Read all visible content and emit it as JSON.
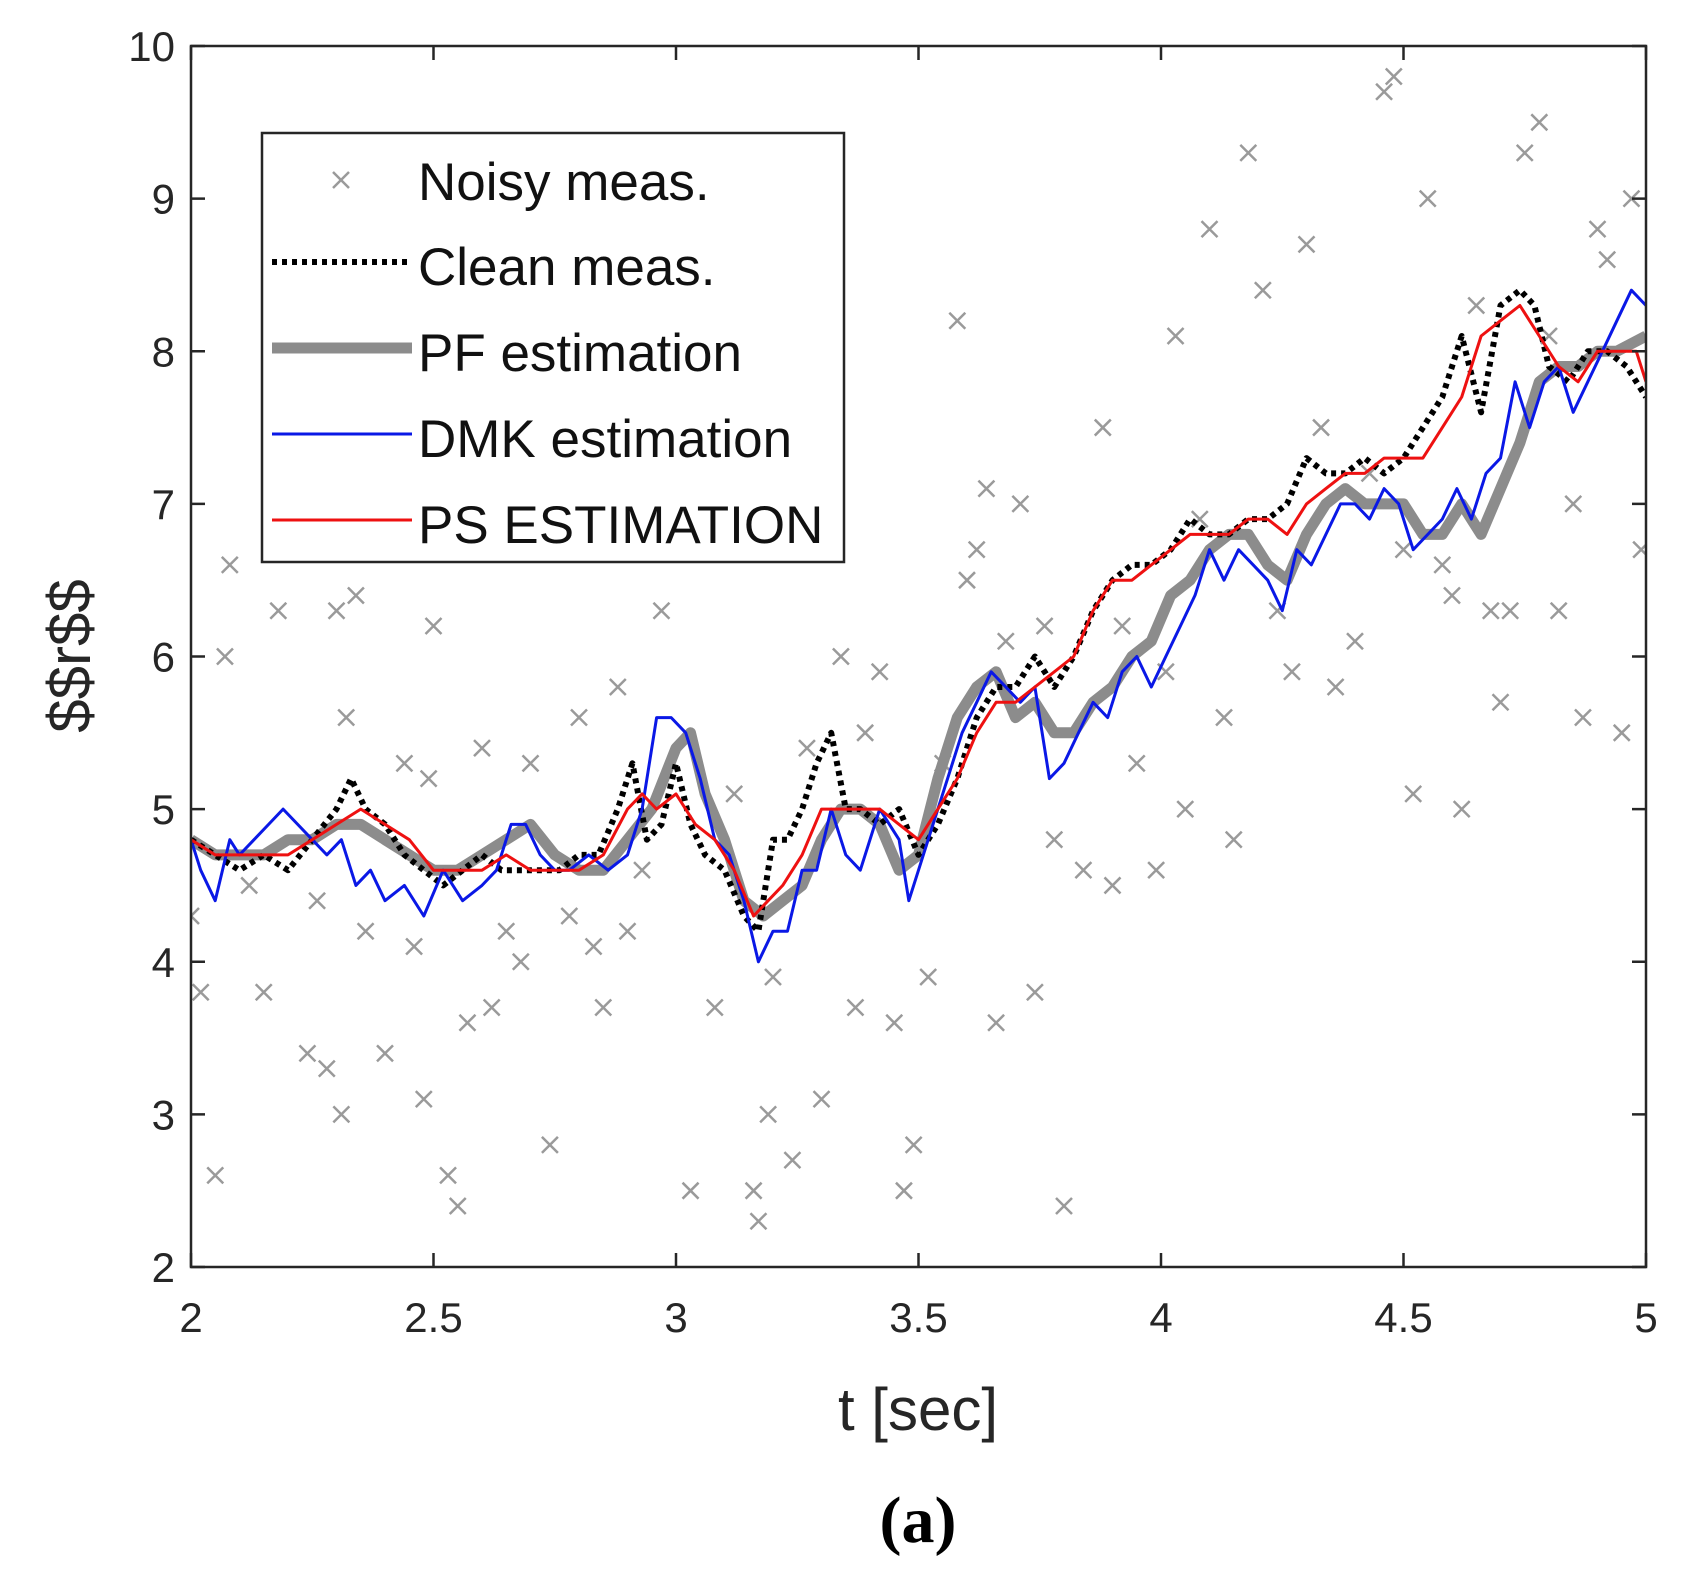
{
  "chart_data": {
    "type": "line",
    "title": "",
    "xlabel": "t [sec]",
    "ylabel": "$$r$$",
    "xlim": [
      2,
      5
    ],
    "ylim": [
      2,
      10
    ],
    "xticks": [
      2,
      2.5,
      3,
      3.5,
      4,
      4.5,
      5
    ],
    "yticks": [
      2,
      3,
      4,
      5,
      6,
      7,
      8,
      9,
      10
    ],
    "xtick_labels": [
      "2",
      "2.5",
      "3",
      "3.5",
      "4",
      "4.5",
      "5"
    ],
    "ytick_labels": [
      "2",
      "3",
      "4",
      "5",
      "6",
      "7",
      "8",
      "9",
      "10"
    ],
    "legend_position": "top-left",
    "series": [
      {
        "name": "Noisy meas.",
        "style": "markers-x",
        "color": "#9a9a9a",
        "x": [
          2.0,
          2.02,
          2.05,
          2.07,
          2.08,
          2.12,
          2.15,
          2.18,
          2.2,
          2.24,
          2.26,
          2.28,
          2.3,
          2.31,
          2.32,
          2.34,
          2.36,
          2.4,
          2.44,
          2.46,
          2.48,
          2.49,
          2.5,
          2.53,
          2.55,
          2.57,
          2.6,
          2.62,
          2.65,
          2.68,
          2.7,
          2.74,
          2.78,
          2.8,
          2.83,
          2.85,
          2.88,
          2.9,
          2.93,
          2.97,
          3.03,
          3.08,
          3.12,
          3.16,
          3.17,
          3.19,
          3.2,
          3.24,
          3.27,
          3.3,
          3.34,
          3.37,
          3.39,
          3.42,
          3.45,
          3.47,
          3.49,
          3.52,
          3.55,
          3.58,
          3.6,
          3.62,
          3.64,
          3.66,
          3.68,
          3.71,
          3.74,
          3.76,
          3.78,
          3.8,
          3.84,
          3.88,
          3.9,
          3.92,
          3.95,
          3.99,
          4.01,
          4.03,
          4.05,
          4.08,
          4.1,
          4.13,
          4.15,
          4.18,
          4.21,
          4.24,
          4.27,
          4.3,
          4.33,
          4.36,
          4.4,
          4.43,
          4.46,
          4.48,
          4.5,
          4.52,
          4.55,
          4.58,
          4.6,
          4.62,
          4.65,
          4.68,
          4.7,
          4.72,
          4.75,
          4.78,
          4.8,
          4.82,
          4.85,
          4.87,
          4.9,
          4.92,
          4.95,
          4.97,
          4.99
        ],
        "y": [
          4.3,
          3.8,
          2.6,
          6.0,
          6.6,
          4.5,
          3.8,
          6.3,
          6.7,
          3.4,
          4.4,
          3.3,
          6.3,
          3.0,
          5.6,
          6.4,
          4.2,
          3.4,
          5.3,
          4.1,
          3.1,
          5.2,
          6.2,
          2.6,
          2.4,
          3.6,
          5.4,
          3.7,
          4.2,
          4.0,
          5.3,
          2.8,
          4.3,
          5.6,
          4.1,
          3.7,
          5.8,
          4.2,
          4.6,
          6.3,
          2.5,
          3.7,
          5.1,
          2.5,
          2.3,
          3.0,
          3.9,
          2.7,
          5.4,
          3.1,
          6.0,
          3.7,
          5.5,
          5.9,
          3.6,
          2.5,
          2.8,
          3.9,
          5.3,
          8.2,
          6.5,
          6.7,
          7.1,
          3.6,
          6.1,
          7.0,
          3.8,
          6.2,
          4.8,
          2.4,
          4.6,
          7.5,
          4.5,
          6.2,
          5.3,
          4.6,
          5.9,
          8.1,
          5.0,
          6.9,
          8.8,
          5.6,
          4.8,
          9.3,
          8.4,
          6.3,
          5.9,
          8.7,
          7.5,
          5.8,
          6.1,
          7.2,
          9.7,
          9.8,
          6.7,
          5.1,
          9.0,
          6.6,
          6.4,
          5.0,
          8.3,
          6.3,
          5.7,
          6.3,
          9.3,
          9.5,
          8.1,
          6.3,
          7.0,
          5.6,
          8.8,
          8.6,
          5.5,
          9.0,
          6.7
        ]
      },
      {
        "name": "Clean meas.",
        "style": "dotted",
        "color": "#000000",
        "x": [
          2.0,
          2.05,
          2.1,
          2.15,
          2.2,
          2.25,
          2.3,
          2.33,
          2.36,
          2.4,
          2.44,
          2.48,
          2.52,
          2.56,
          2.6,
          2.64,
          2.68,
          2.72,
          2.76,
          2.8,
          2.84,
          2.88,
          2.91,
          2.94,
          2.97,
          3.0,
          3.03,
          3.06,
          3.1,
          3.14,
          3.17,
          3.2,
          3.23,
          3.26,
          3.29,
          3.32,
          3.35,
          3.38,
          3.42,
          3.46,
          3.5,
          3.54,
          3.58,
          3.62,
          3.66,
          3.7,
          3.74,
          3.78,
          3.82,
          3.86,
          3.9,
          3.94,
          3.98,
          4.02,
          4.06,
          4.1,
          4.14,
          4.18,
          4.22,
          4.26,
          4.3,
          4.34,
          4.38,
          4.42,
          4.46,
          4.5,
          4.54,
          4.58,
          4.62,
          4.66,
          4.7,
          4.74,
          4.77,
          4.8,
          4.84,
          4.88,
          4.92,
          4.96,
          5.0
        ],
        "y": [
          4.8,
          4.7,
          4.6,
          4.7,
          4.6,
          4.8,
          5.0,
          5.2,
          5.0,
          4.9,
          4.7,
          4.6,
          4.5,
          4.6,
          4.7,
          4.6,
          4.6,
          4.6,
          4.6,
          4.7,
          4.7,
          5.0,
          5.3,
          4.8,
          4.9,
          5.3,
          4.9,
          4.7,
          4.6,
          4.3,
          4.2,
          4.8,
          4.8,
          5.0,
          5.3,
          5.5,
          5.0,
          5.0,
          4.9,
          5.0,
          4.7,
          4.9,
          5.2,
          5.6,
          5.8,
          5.8,
          6.0,
          5.8,
          6.0,
          6.3,
          6.5,
          6.6,
          6.6,
          6.7,
          6.9,
          6.8,
          6.8,
          6.9,
          6.9,
          7.0,
          7.3,
          7.2,
          7.2,
          7.3,
          7.2,
          7.3,
          7.5,
          7.7,
          8.1,
          7.6,
          8.3,
          8.4,
          8.3,
          7.9,
          7.8,
          8.0,
          8.0,
          7.9,
          7.7
        ]
      },
      {
        "name": "PF estimation",
        "style": "thick",
        "color": "#8c8c8c",
        "x": [
          2.0,
          2.05,
          2.1,
          2.15,
          2.2,
          2.25,
          2.3,
          2.35,
          2.4,
          2.45,
          2.5,
          2.55,
          2.6,
          2.65,
          2.7,
          2.75,
          2.8,
          2.85,
          2.9,
          2.95,
          3.0,
          3.03,
          3.06,
          3.1,
          3.14,
          3.18,
          3.22,
          3.26,
          3.3,
          3.34,
          3.38,
          3.42,
          3.46,
          3.5,
          3.54,
          3.58,
          3.62,
          3.66,
          3.7,
          3.74,
          3.78,
          3.82,
          3.86,
          3.9,
          3.94,
          3.98,
          4.02,
          4.06,
          4.1,
          4.14,
          4.18,
          4.22,
          4.26,
          4.3,
          4.34,
          4.38,
          4.42,
          4.46,
          4.5,
          4.54,
          4.58,
          4.62,
          4.66,
          4.7,
          4.74,
          4.78,
          4.82,
          4.86,
          4.9,
          4.94,
          5.0
        ],
        "y": [
          4.8,
          4.7,
          4.7,
          4.7,
          4.8,
          4.8,
          4.9,
          4.9,
          4.8,
          4.7,
          4.6,
          4.6,
          4.7,
          4.8,
          4.9,
          4.7,
          4.6,
          4.6,
          4.8,
          5.0,
          5.4,
          5.5,
          5.1,
          4.8,
          4.4,
          4.3,
          4.4,
          4.5,
          4.8,
          5.0,
          5.0,
          4.9,
          4.6,
          4.7,
          5.2,
          5.6,
          5.8,
          5.9,
          5.6,
          5.7,
          5.5,
          5.5,
          5.7,
          5.8,
          6.0,
          6.1,
          6.4,
          6.5,
          6.7,
          6.8,
          6.8,
          6.6,
          6.5,
          6.8,
          7.0,
          7.1,
          7.0,
          7.0,
          7.0,
          6.8,
          6.8,
          7.0,
          6.8,
          7.1,
          7.4,
          7.8,
          7.9,
          7.9,
          8.0,
          8.0,
          8.1
        ]
      },
      {
        "name": "DMK estimation",
        "style": "thin",
        "color": "#0a18e6",
        "x": [
          2.0,
          2.02,
          2.05,
          2.08,
          2.1,
          2.13,
          2.16,
          2.19,
          2.22,
          2.25,
          2.28,
          2.31,
          2.34,
          2.37,
          2.4,
          2.44,
          2.48,
          2.52,
          2.56,
          2.6,
          2.63,
          2.66,
          2.69,
          2.72,
          2.75,
          2.78,
          2.82,
          2.86,
          2.9,
          2.93,
          2.96,
          2.99,
          3.02,
          3.05,
          3.08,
          3.11,
          3.14,
          3.17,
          3.2,
          3.23,
          3.26,
          3.29,
          3.32,
          3.35,
          3.38,
          3.42,
          3.46,
          3.48,
          3.5,
          3.53,
          3.56,
          3.59,
          3.62,
          3.65,
          3.68,
          3.71,
          3.74,
          3.77,
          3.8,
          3.83,
          3.86,
          3.89,
          3.92,
          3.95,
          3.98,
          4.01,
          4.04,
          4.07,
          4.1,
          4.13,
          4.16,
          4.19,
          4.22,
          4.25,
          4.28,
          4.31,
          4.34,
          4.37,
          4.4,
          4.43,
          4.46,
          4.49,
          4.52,
          4.55,
          4.58,
          4.61,
          4.64,
          4.67,
          4.7,
          4.73,
          4.76,
          4.79,
          4.82,
          4.85,
          4.88,
          4.91,
          4.94,
          4.97,
          5.0
        ],
        "y": [
          4.8,
          4.6,
          4.4,
          4.8,
          4.7,
          4.8,
          4.9,
          5.0,
          4.9,
          4.8,
          4.7,
          4.8,
          4.5,
          4.6,
          4.4,
          4.5,
          4.3,
          4.6,
          4.4,
          4.5,
          4.6,
          4.9,
          4.9,
          4.7,
          4.6,
          4.6,
          4.7,
          4.6,
          4.7,
          5.0,
          5.6,
          5.6,
          5.5,
          5.2,
          4.8,
          4.7,
          4.4,
          4.0,
          4.2,
          4.2,
          4.6,
          4.6,
          5.0,
          4.7,
          4.6,
          5.0,
          4.8,
          4.4,
          4.6,
          4.9,
          5.2,
          5.5,
          5.7,
          5.9,
          5.8,
          5.7,
          5.8,
          5.2,
          5.3,
          5.5,
          5.7,
          5.6,
          5.9,
          6.0,
          5.8,
          6.0,
          6.2,
          6.4,
          6.7,
          6.5,
          6.7,
          6.6,
          6.5,
          6.3,
          6.7,
          6.6,
          6.8,
          7.0,
          7.0,
          6.9,
          7.1,
          7.0,
          6.7,
          6.8,
          6.9,
          7.1,
          6.9,
          7.2,
          7.3,
          7.8,
          7.5,
          7.8,
          7.9,
          7.6,
          7.8,
          8.0,
          8.2,
          8.4,
          8.3
        ]
      },
      {
        "name": "PS ESTIMATION",
        "style": "thin",
        "color": "#ee1111",
        "x": [
          2.0,
          2.05,
          2.1,
          2.15,
          2.2,
          2.25,
          2.3,
          2.35,
          2.4,
          2.45,
          2.5,
          2.55,
          2.6,
          2.65,
          2.7,
          2.75,
          2.8,
          2.85,
          2.9,
          2.93,
          2.96,
          3.0,
          3.04,
          3.08,
          3.12,
          3.16,
          3.19,
          3.22,
          3.26,
          3.3,
          3.34,
          3.38,
          3.42,
          3.46,
          3.5,
          3.54,
          3.58,
          3.62,
          3.66,
          3.7,
          3.74,
          3.78,
          3.82,
          3.86,
          3.9,
          3.94,
          3.98,
          4.02,
          4.06,
          4.1,
          4.14,
          4.18,
          4.22,
          4.26,
          4.3,
          4.34,
          4.38,
          4.42,
          4.46,
          4.5,
          4.54,
          4.58,
          4.62,
          4.66,
          4.7,
          4.74,
          4.78,
          4.82,
          4.86,
          4.9,
          4.94,
          4.98,
          5.0
        ],
        "y": [
          4.8,
          4.7,
          4.7,
          4.7,
          4.7,
          4.8,
          4.9,
          5.0,
          4.9,
          4.8,
          4.6,
          4.6,
          4.6,
          4.7,
          4.6,
          4.6,
          4.6,
          4.7,
          5.0,
          5.1,
          5.0,
          5.1,
          4.9,
          4.8,
          4.6,
          4.3,
          4.4,
          4.5,
          4.7,
          5.0,
          5.0,
          5.0,
          5.0,
          4.9,
          4.8,
          5.0,
          5.2,
          5.5,
          5.7,
          5.7,
          5.8,
          5.9,
          6.0,
          6.3,
          6.5,
          6.5,
          6.6,
          6.7,
          6.8,
          6.8,
          6.8,
          6.9,
          6.9,
          6.8,
          7.0,
          7.1,
          7.2,
          7.2,
          7.3,
          7.3,
          7.3,
          7.5,
          7.7,
          8.1,
          8.2,
          8.3,
          8.1,
          7.9,
          7.8,
          8.0,
          8.0,
          8.0,
          7.8
        ]
      }
    ]
  },
  "caption": "(a)"
}
